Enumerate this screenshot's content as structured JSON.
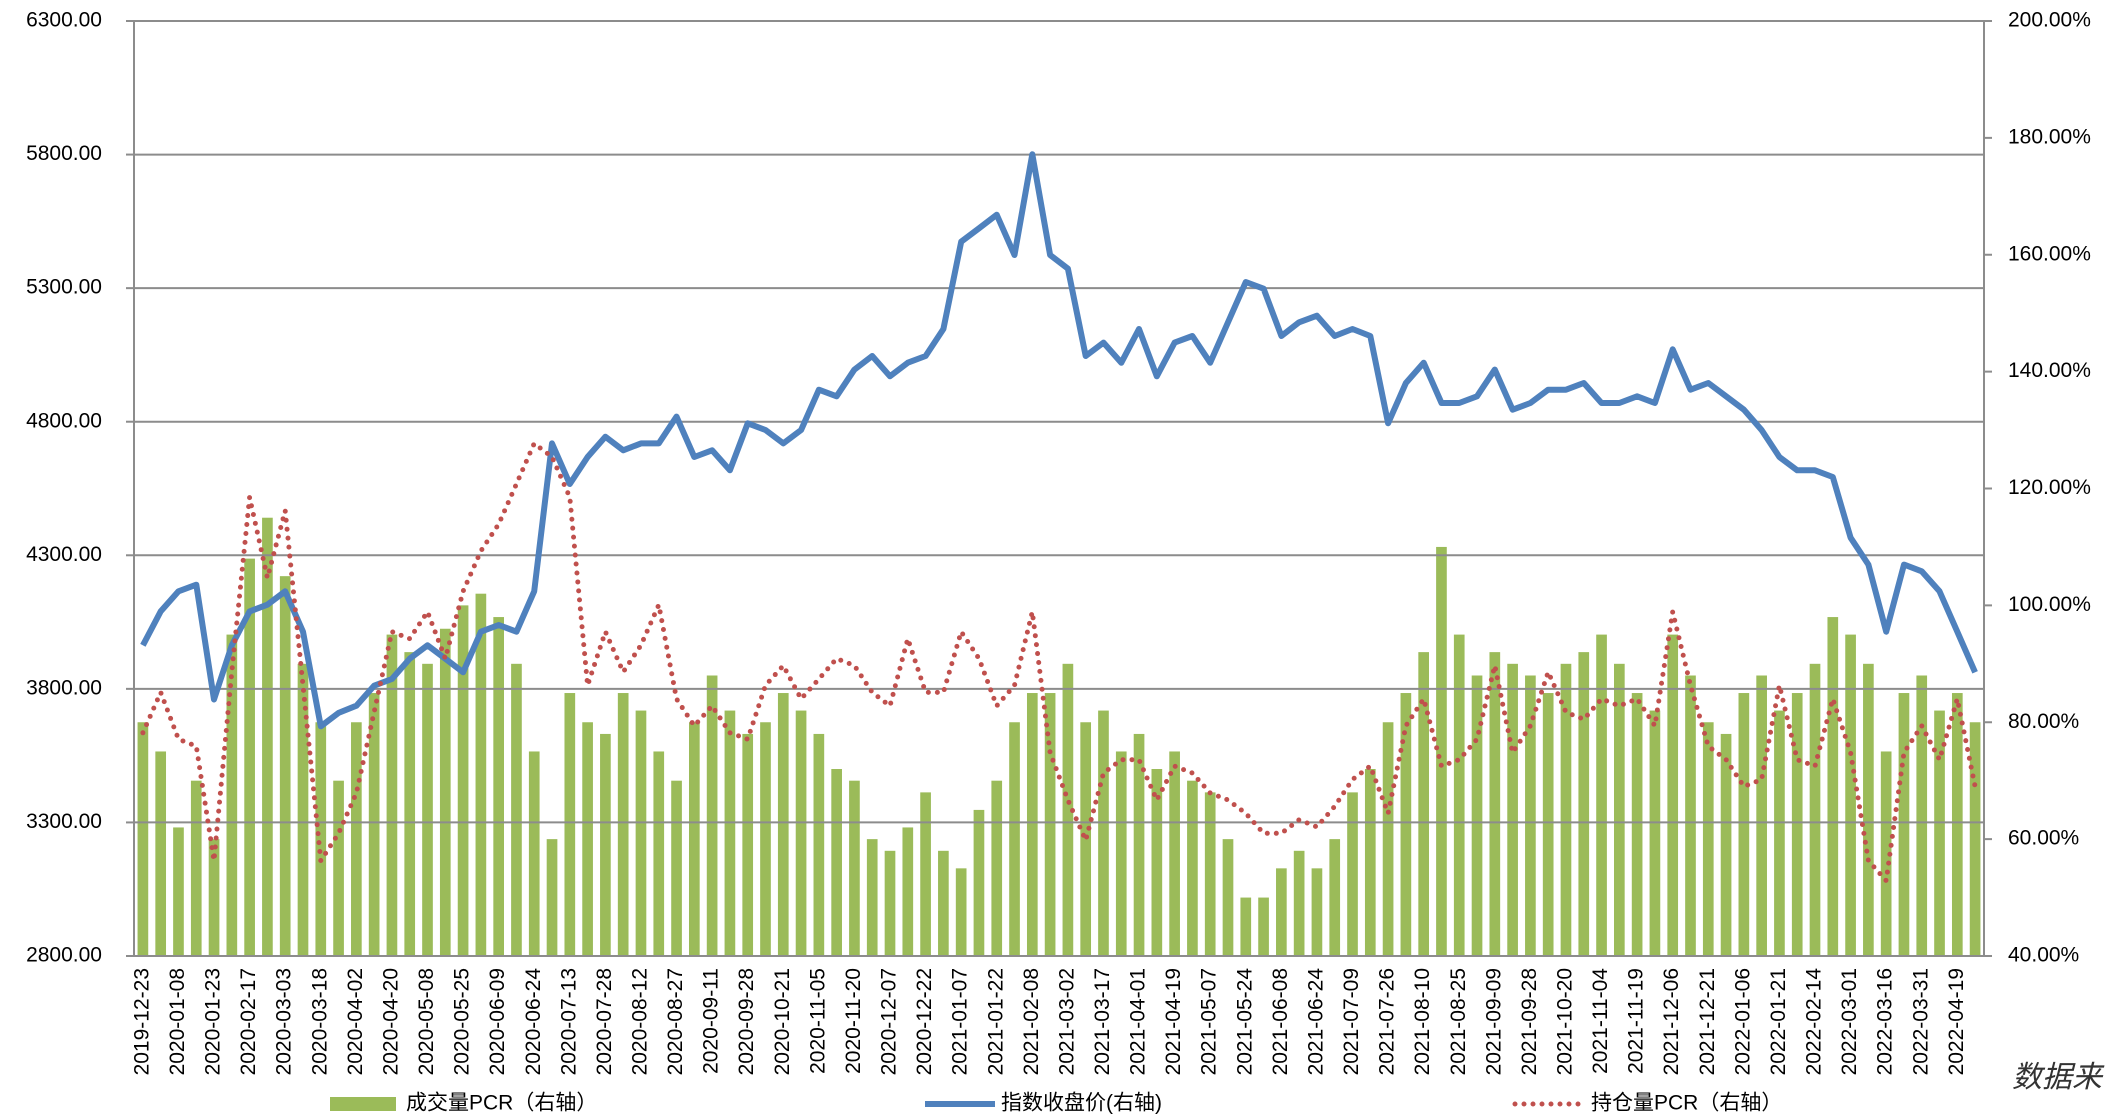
{
  "chart_data": {
    "type": "combo",
    "categories": [
      "2019-12-23",
      null,
      "2020-01-08",
      null,
      "2020-01-23",
      null,
      "2020-02-17",
      null,
      "2020-03-03",
      null,
      "2020-03-18",
      null,
      "2020-04-02",
      null,
      "2020-04-20",
      null,
      "2020-05-08",
      null,
      "2020-05-25",
      null,
      "2020-06-09",
      null,
      "2020-06-24",
      null,
      "2020-07-13",
      null,
      "2020-07-28",
      null,
      "2020-08-12",
      null,
      "2020-08-27",
      null,
      "2020-09-11",
      null,
      "2020-09-28",
      null,
      "2020-10-21",
      null,
      "2020-11-05",
      null,
      "2020-11-20",
      null,
      "2020-12-07",
      null,
      "2020-12-22",
      null,
      "2021-01-07",
      null,
      "2021-01-22",
      null,
      "2021-02-08",
      null,
      "2021-03-02",
      null,
      "2021-03-17",
      null,
      "2021-04-01",
      null,
      "2021-04-19",
      null,
      "2021-05-07",
      null,
      "2021-05-24",
      null,
      "2021-06-08",
      null,
      "2021-06-24",
      null,
      "2021-07-09",
      null,
      "2021-07-26",
      null,
      "2021-08-10",
      null,
      "2021-08-25",
      null,
      "2021-09-09",
      null,
      "2021-09-28",
      null,
      "2021-10-20",
      null,
      "2021-11-04",
      null,
      "2021-11-19",
      null,
      "2021-12-06",
      null,
      "2021-12-21",
      null,
      "2022-01-06",
      null,
      "2022-01-21",
      null,
      "2022-02-14",
      null,
      "2022-03-01",
      null,
      "2022-03-16",
      null,
      "2022-03-31",
      null,
      "2022-04-19",
      null
    ],
    "series": [
      {
        "name": "成交量PCR（右轴）",
        "type": "bar",
        "axis": "y2",
        "color": "#9bbb59",
        "values": [
          80,
          75,
          62,
          70,
          60,
          95,
          108,
          115,
          105,
          90,
          80,
          70,
          80,
          85,
          95,
          92,
          90,
          96,
          100,
          102,
          98,
          90,
          75,
          60,
          85,
          80,
          78,
          85,
          82,
          75,
          70,
          80,
          88,
          82,
          78,
          80,
          85,
          82,
          78,
          72,
          70,
          60,
          58,
          62,
          68,
          58,
          55,
          65,
          70,
          80,
          85,
          85,
          90,
          80,
          82,
          75,
          78,
          72,
          75,
          70,
          68,
          60,
          50,
          50,
          55,
          58,
          55,
          60,
          68,
          72,
          80,
          85,
          92,
          110,
          95,
          88,
          92,
          90,
          88,
          85,
          90,
          92,
          95,
          90,
          85,
          82,
          95,
          88,
          80,
          78,
          85,
          88,
          82,
          85,
          90,
          98,
          95,
          90,
          75,
          85,
          88,
          82,
          85,
          80
        ]
      },
      {
        "name": "指数收盘价(右轴)",
        "type": "line",
        "axis": "y",
        "color": "#4f81bd",
        "dotted": false,
        "values": [
          3963,
          4090,
          4165,
          4190,
          3760,
          3963,
          4090,
          4115,
          4165,
          4014,
          3660,
          3710,
          3737,
          3812,
          3837,
          3913,
          3963,
          3913,
          3862,
          4014,
          4039,
          4014,
          4165,
          4719,
          4567,
          4668,
          4744,
          4693,
          4719,
          4719,
          4819,
          4668,
          4693,
          4618,
          4794,
          4769,
          4719,
          4769,
          4920,
          4895,
          4995,
          5046,
          4970,
          5021,
          5046,
          5147,
          5474,
          5524,
          5575,
          5424,
          5801,
          5424,
          5373,
          5046,
          5096,
          5021,
          5147,
          4970,
          5096,
          5121,
          5021,
          5172,
          5323,
          5298,
          5121,
          5172,
          5197,
          5121,
          5147,
          5121,
          4794,
          4945,
          5021,
          4870,
          4870,
          4895,
          4995,
          4845,
          4870,
          4920,
          4920,
          4945,
          4870,
          4870,
          4895,
          4870,
          5071,
          4920,
          4945,
          4895,
          4845,
          4769,
          4668,
          4618,
          4618,
          4593,
          4366,
          4265,
          4014,
          4265,
          4240,
          4165,
          4014,
          3862
        ]
      },
      {
        "name": "持仓量PCR（右轴）",
        "type": "line",
        "axis": "y2",
        "color": "#c0504d",
        "dotted": true,
        "values": [
          78.2,
          85.1,
          77.1,
          75.9,
          56.3,
          88.6,
          118.5,
          104.7,
          116.2,
          86.3,
          56.3,
          61.0,
          67.9,
          81.7,
          95.5,
          94.3,
          98.9,
          90.9,
          102.4,
          109.3,
          113.9,
          120.8,
          127.7,
          125.4,
          118.5,
          86.3,
          95.5,
          88.6,
          93.2,
          100.1,
          84.0,
          79.4,
          82.8,
          78.2,
          77.1,
          86.3,
          89.7,
          84.0,
          87.4,
          90.9,
          89.7,
          85.1,
          82.8,
          94.3,
          85.1,
          85.1,
          95.5,
          90.9,
          82.8,
          86.3,
          98.9,
          74.8,
          66.7,
          59.8,
          71.3,
          73.6,
          73.6,
          66.7,
          72.5,
          71.3,
          67.9,
          66.7,
          64.4,
          61.0,
          61.0,
          63.3,
          62.1,
          65.6,
          70.2,
          72.5,
          64.4,
          79.4,
          84.0,
          72.5,
          73.6,
          77.1,
          89.7,
          74.8,
          79.4,
          88.6,
          81.7,
          80.5,
          84.0,
          82.8,
          84.0,
          79.4,
          98.9,
          86.3,
          75.9,
          73.6,
          69.0,
          70.2,
          86.3,
          73.6,
          72.5,
          84.0,
          74.8,
          56.3,
          52.9,
          74.8,
          79.4,
          73.6,
          84.0,
          69.0
        ]
      }
    ],
    "ylim": [
      2800,
      6300
    ],
    "yticks": [
      {
        "value": 2800,
        "label": "2800.00"
      },
      {
        "value": 3300,
        "label": "3300.00"
      },
      {
        "value": 3800,
        "label": "3800.00"
      },
      {
        "value": 4300,
        "label": "4300.00"
      },
      {
        "value": 4800,
        "label": "4800.00"
      },
      {
        "value": 5300,
        "label": "5300.00"
      },
      {
        "value": 5800,
        "label": "5800.00"
      },
      {
        "value": 6300,
        "label": "6300.00"
      }
    ],
    "y2lim": [
      40,
      200
    ],
    "y2ticks": [
      {
        "value": 40,
        "label": "40.00%"
      },
      {
        "value": 60,
        "label": "60.00%"
      },
      {
        "value": 80,
        "label": "80.00%"
      },
      {
        "value": 100,
        "label": "100.00%"
      },
      {
        "value": 120,
        "label": "120.00%"
      },
      {
        "value": 140,
        "label": "140.00%"
      },
      {
        "value": 160,
        "label": "160.00%"
      },
      {
        "value": 180,
        "label": "180.00%"
      },
      {
        "value": 200,
        "label": "200.00%"
      }
    ],
    "grid": true,
    "legend": "bottom",
    "annotation": "数据来"
  }
}
